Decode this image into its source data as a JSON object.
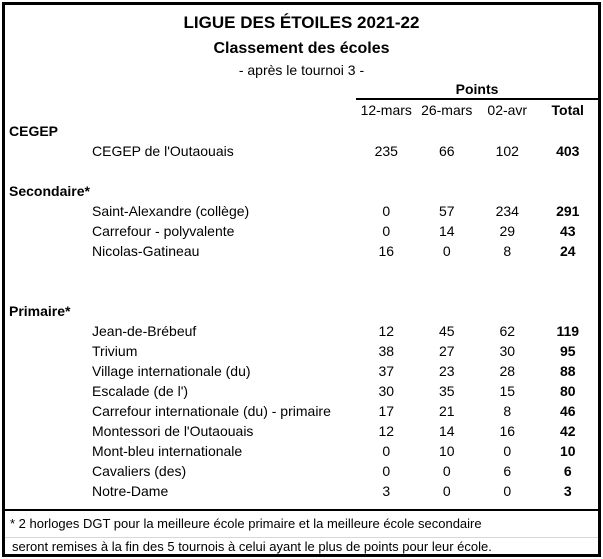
{
  "page": {
    "background_color": "#ffffff",
    "border_color": "#000000",
    "text_color": "#000000"
  },
  "header": {
    "title": "LIGUE DES ÉTOILES 2021-22",
    "subtitle": "Classement des écoles",
    "tagline": "- après le tournoi 3 -"
  },
  "table": {
    "points_label": "Points",
    "column_headers": [
      "12-mars",
      "26-mars",
      "02-avr",
      "Total"
    ],
    "sections": [
      {
        "label": "CEGEP",
        "blank_rows_after": 1,
        "rows": [
          {
            "name": "CEGEP de l'Outaouais",
            "values": [
              "235",
              "66",
              "102"
            ],
            "total": "403"
          }
        ]
      },
      {
        "label": "Secondaire*",
        "blank_rows_after": 2,
        "rows": [
          {
            "name": "Saint-Alexandre (collège)",
            "values": [
              "0",
              "57",
              "234"
            ],
            "total": "291"
          },
          {
            "name": "Carrefour - polyvalente",
            "values": [
              "0",
              "14",
              "29"
            ],
            "total": "43"
          },
          {
            "name": "Nicolas-Gatineau",
            "values": [
              "16",
              "0",
              "8"
            ],
            "total": "24"
          }
        ]
      },
      {
        "label": "Primaire*",
        "blank_rows_after": 0,
        "rows": [
          {
            "name": "Jean-de-Brébeuf",
            "values": [
              "12",
              "45",
              "62"
            ],
            "total": "119"
          },
          {
            "name": "Trivium",
            "values": [
              "38",
              "27",
              "30"
            ],
            "total": "95"
          },
          {
            "name": "Village internationale (du)",
            "values": [
              "37",
              "23",
              "28"
            ],
            "total": "88"
          },
          {
            "name": "Escalade (de l')",
            "values": [
              "30",
              "35",
              "15"
            ],
            "total": "80"
          },
          {
            "name": "Carrefour internationale (du) - primaire",
            "values": [
              "17",
              "21",
              "8"
            ],
            "total": "46"
          },
          {
            "name": "Montessori de l'Outaouais",
            "values": [
              "12",
              "14",
              "16"
            ],
            "total": "42"
          },
          {
            "name": "Mont-bleu internationale",
            "values": [
              "0",
              "10",
              "0"
            ],
            "total": "10"
          },
          {
            "name": "Cavaliers (des)",
            "values": [
              "0",
              "0",
              "6"
            ],
            "total": "6"
          },
          {
            "name": "Notre-Dame",
            "values": [
              "3",
              "0",
              "0"
            ],
            "total": "3"
          }
        ]
      }
    ]
  },
  "footnotes": {
    "line1": "* 2 horloges DGT pour la meilleure école primaire et la meilleure école secondaire",
    "line2": "seront remises à la fin des 5 tournois à celui ayant le plus de points pour leur école."
  }
}
